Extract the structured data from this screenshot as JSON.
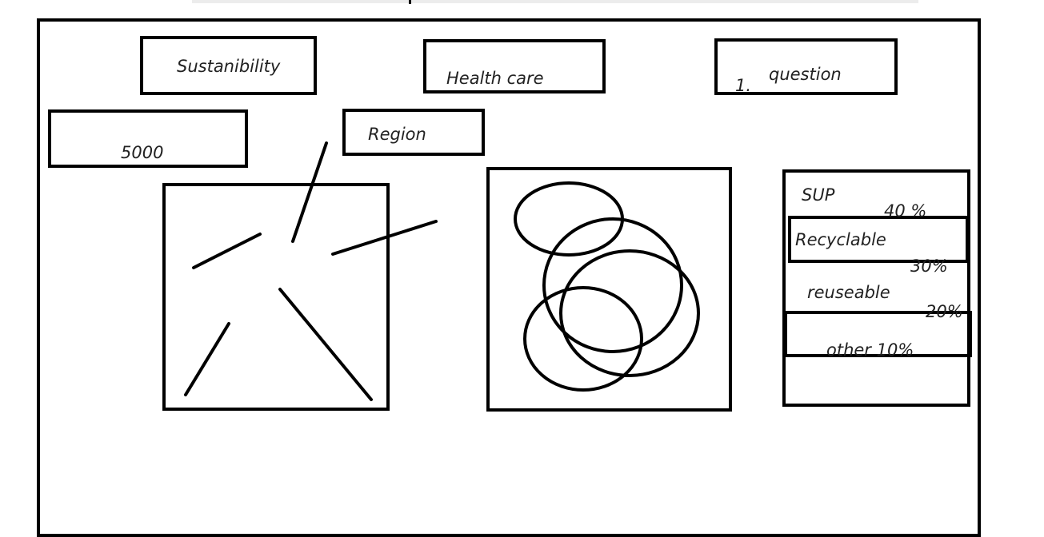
{
  "labels": {
    "sustainability": "Sustanibility",
    "health_care": "Health care",
    "question_num": "1.",
    "question": "question",
    "count": "5000",
    "region": "Region"
  },
  "legend": {
    "sup": "SUP",
    "sup_pct": "40 %",
    "recyclable": "Recyclable",
    "recyclable_pct": "30%",
    "reuseable": "reuseable",
    "reuseable_pct": "20%",
    "other": "other 10%"
  },
  "colors": {
    "stroke": "#000000",
    "topbar": "#ececec"
  }
}
